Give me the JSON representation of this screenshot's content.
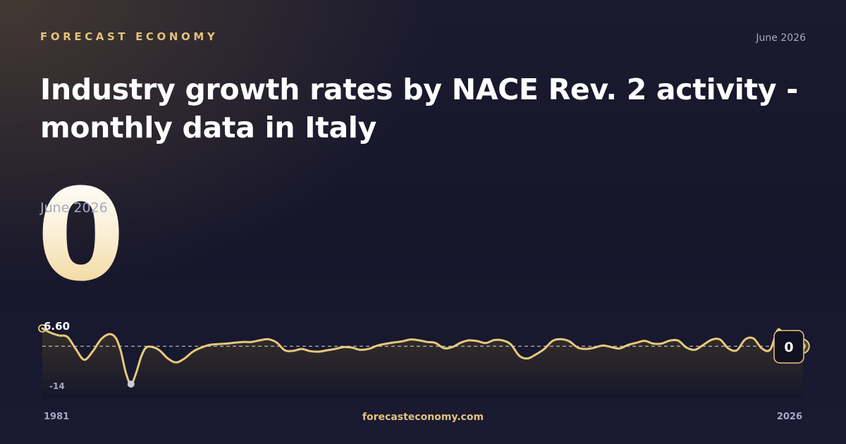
{
  "brand": "FORECAST ECONOMY",
  "header_date": "June 2026",
  "title": "Industry growth rates by NACE Rev. 2 activity - monthly data in Italy",
  "current_value": "0",
  "current_value_date": "June 2026",
  "footer_site": "forecasteconomy.com",
  "colors": {
    "accent": "#e3c27a",
    "line": "#e8c87a",
    "background": "#16162b",
    "min_marker": "#c9cbe0"
  },
  "chart_data": {
    "type": "line",
    "title": "",
    "xlabel": "",
    "ylabel": "",
    "x_start_label": "1981",
    "x_end_label": "2026",
    "xlim": [
      1981,
      2026.5
    ],
    "ylim": [
      -14,
      6.6
    ],
    "max_label": "6.60",
    "min_label": "-14",
    "end_label": "0",
    "reference_line": 0,
    "grid": false,
    "legend": "none",
    "series": [
      {
        "x": [
          1981.0,
          1981.5,
          1982.0,
          1982.5,
          1983.0,
          1983.5,
          1984.0,
          1984.5,
          1985.0,
          1985.4,
          1985.7,
          1986.0,
          1986.3,
          1986.6,
          1986.9,
          1987.2,
          1987.6,
          1988.0,
          1988.5,
          1989.0,
          1989.5,
          1990.0,
          1990.5,
          1991.0,
          1991.5,
          1992.0,
          1992.5,
          1993.0,
          1993.5,
          1994.0,
          1994.5,
          1995.0,
          1995.5,
          1996.0,
          1996.5,
          1997.0,
          1997.5,
          1998.0,
          1998.5,
          1999.0,
          1999.5,
          2000.0,
          2000.5,
          2001.0,
          2001.5,
          2002.0,
          2002.5,
          2003.0,
          2003.5,
          2004.0,
          2004.5,
          2005.0,
          2005.5,
          2006.0,
          2006.5,
          2007.0,
          2007.5,
          2008.0,
          2008.5,
          2009.0,
          2009.5,
          2010.0,
          2010.5,
          2011.0,
          2011.5,
          2012.0,
          2012.5,
          2013.0,
          2013.5,
          2014.0,
          2014.5,
          2015.0,
          2015.5,
          2016.0,
          2016.5,
          2017.0,
          2017.5,
          2018.0,
          2018.5,
          2019.0,
          2019.5,
          2020.0,
          2020.5,
          2021.0,
          2021.5,
          2022.0,
          2022.5,
          2023.0,
          2023.5,
          2024.0,
          2024.5,
          2025.0,
          2025.5,
          2026.0,
          2026.45
        ],
        "values": [
          6.6,
          5.0,
          4.0,
          3.5,
          -1.0,
          -5.0,
          -2.0,
          2.5,
          4.5,
          3.0,
          -2.0,
          -10.0,
          -14.0,
          -10.0,
          -4.0,
          -0.5,
          -0.3,
          -1.5,
          -4.5,
          -6.0,
          -4.5,
          -2.0,
          -0.5,
          0.5,
          0.8,
          1.0,
          1.3,
          1.6,
          1.6,
          2.2,
          2.6,
          1.4,
          -1.5,
          -1.7,
          -1.0,
          -1.8,
          -2.0,
          -1.5,
          -1.0,
          -0.3,
          -0.5,
          -1.3,
          -1.0,
          0.2,
          0.9,
          1.4,
          1.8,
          2.5,
          2.2,
          1.6,
          1.2,
          -0.7,
          -0.3,
          1.3,
          2.2,
          1.9,
          1.2,
          2.3,
          2.2,
          0.7,
          -3.5,
          -4.5,
          -3.0,
          -1.0,
          2.0,
          2.6,
          1.8,
          -0.5,
          -1.0,
          -0.5,
          0.3,
          -0.3,
          -0.8,
          0.5,
          1.3,
          2.0,
          1.0,
          1.0,
          2.1,
          2.1,
          -0.5,
          -1.3,
          0.5,
          2.4,
          2.5,
          -0.8,
          -1.5,
          2.5,
          2.9,
          -0.8,
          -1.2,
          6.3,
          0.5,
          0.0,
          0.0
        ]
      }
    ]
  }
}
